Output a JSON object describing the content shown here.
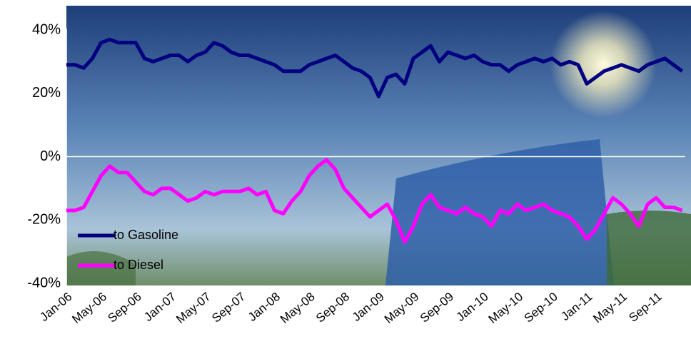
{
  "chart_data": {
    "type": "line",
    "categories": [
      "Jan-06",
      null,
      null,
      null,
      "May-06",
      null,
      null,
      null,
      "Sep-06",
      null,
      null,
      null,
      "Jan-07",
      null,
      null,
      null,
      "May-07",
      null,
      null,
      null,
      "Sep-07",
      null,
      null,
      null,
      "Jan-08",
      null,
      null,
      null,
      "May-08",
      null,
      null,
      null,
      "Sep-08",
      null,
      null,
      null,
      "Jan-09",
      null,
      null,
      null,
      "May-09",
      null,
      null,
      null,
      "Sep-09",
      null,
      null,
      null,
      "Jan-10",
      null,
      null,
      null,
      "May-10",
      null,
      null,
      null,
      "Sep-10",
      null,
      null,
      null,
      "Jan-11",
      null,
      null,
      null,
      "May-11",
      null,
      null,
      null,
      "Sep-11",
      null,
      null,
      null
    ],
    "series": [
      {
        "name": "to Gasoline",
        "color": "#000080",
        "values": [
          29,
          29,
          28,
          31,
          36,
          37,
          36,
          36,
          36,
          31,
          30,
          31,
          32,
          32,
          30,
          32,
          33,
          36,
          35,
          33,
          32,
          32,
          31,
          30,
          29,
          27,
          27,
          27,
          29,
          30,
          31,
          32,
          30,
          28,
          27,
          25,
          19,
          25,
          26,
          23,
          31,
          33,
          35,
          30,
          33,
          32,
          31,
          32,
          30,
          29,
          29,
          27,
          29,
          30,
          31,
          30,
          31,
          29,
          30,
          29,
          23,
          25,
          27,
          28,
          29,
          28,
          27,
          29,
          30,
          31,
          29,
          27
        ]
      },
      {
        "name": "to Diesel",
        "color": "#ff00ff",
        "values": [
          -17,
          -17,
          -16,
          -11,
          -6,
          -3,
          -5,
          -5,
          -8,
          -11,
          -12,
          -10,
          -10,
          -12,
          -14,
          -13,
          -11,
          -12,
          -11,
          -11,
          -11,
          -10,
          -12,
          -11,
          -17,
          -18,
          -14,
          -11,
          -6,
          -3,
          -1,
          -4,
          -10,
          -13,
          -16,
          -19,
          -17,
          -15,
          -20,
          -27,
          -22,
          -15,
          -12,
          -16,
          -17,
          -18,
          -16,
          -18,
          -19,
          -22,
          -17,
          -18,
          -15,
          -17,
          -16,
          -15,
          -17,
          -18,
          -19,
          -22,
          -26,
          -23,
          -18,
          -13,
          -15,
          -18,
          -22,
          -15,
          -13,
          -16,
          -16,
          -17
        ]
      }
    ],
    "ylim": [
      -40,
      40
    ],
    "yticks": [
      {
        "value": -40,
        "label": "-40%"
      },
      {
        "value": -20,
        "label": "-20%"
      },
      {
        "value": 0,
        "label": "0%"
      },
      {
        "value": 20,
        "label": "20%"
      },
      {
        "value": 40,
        "label": "40%"
      }
    ],
    "legend": "lower left"
  }
}
